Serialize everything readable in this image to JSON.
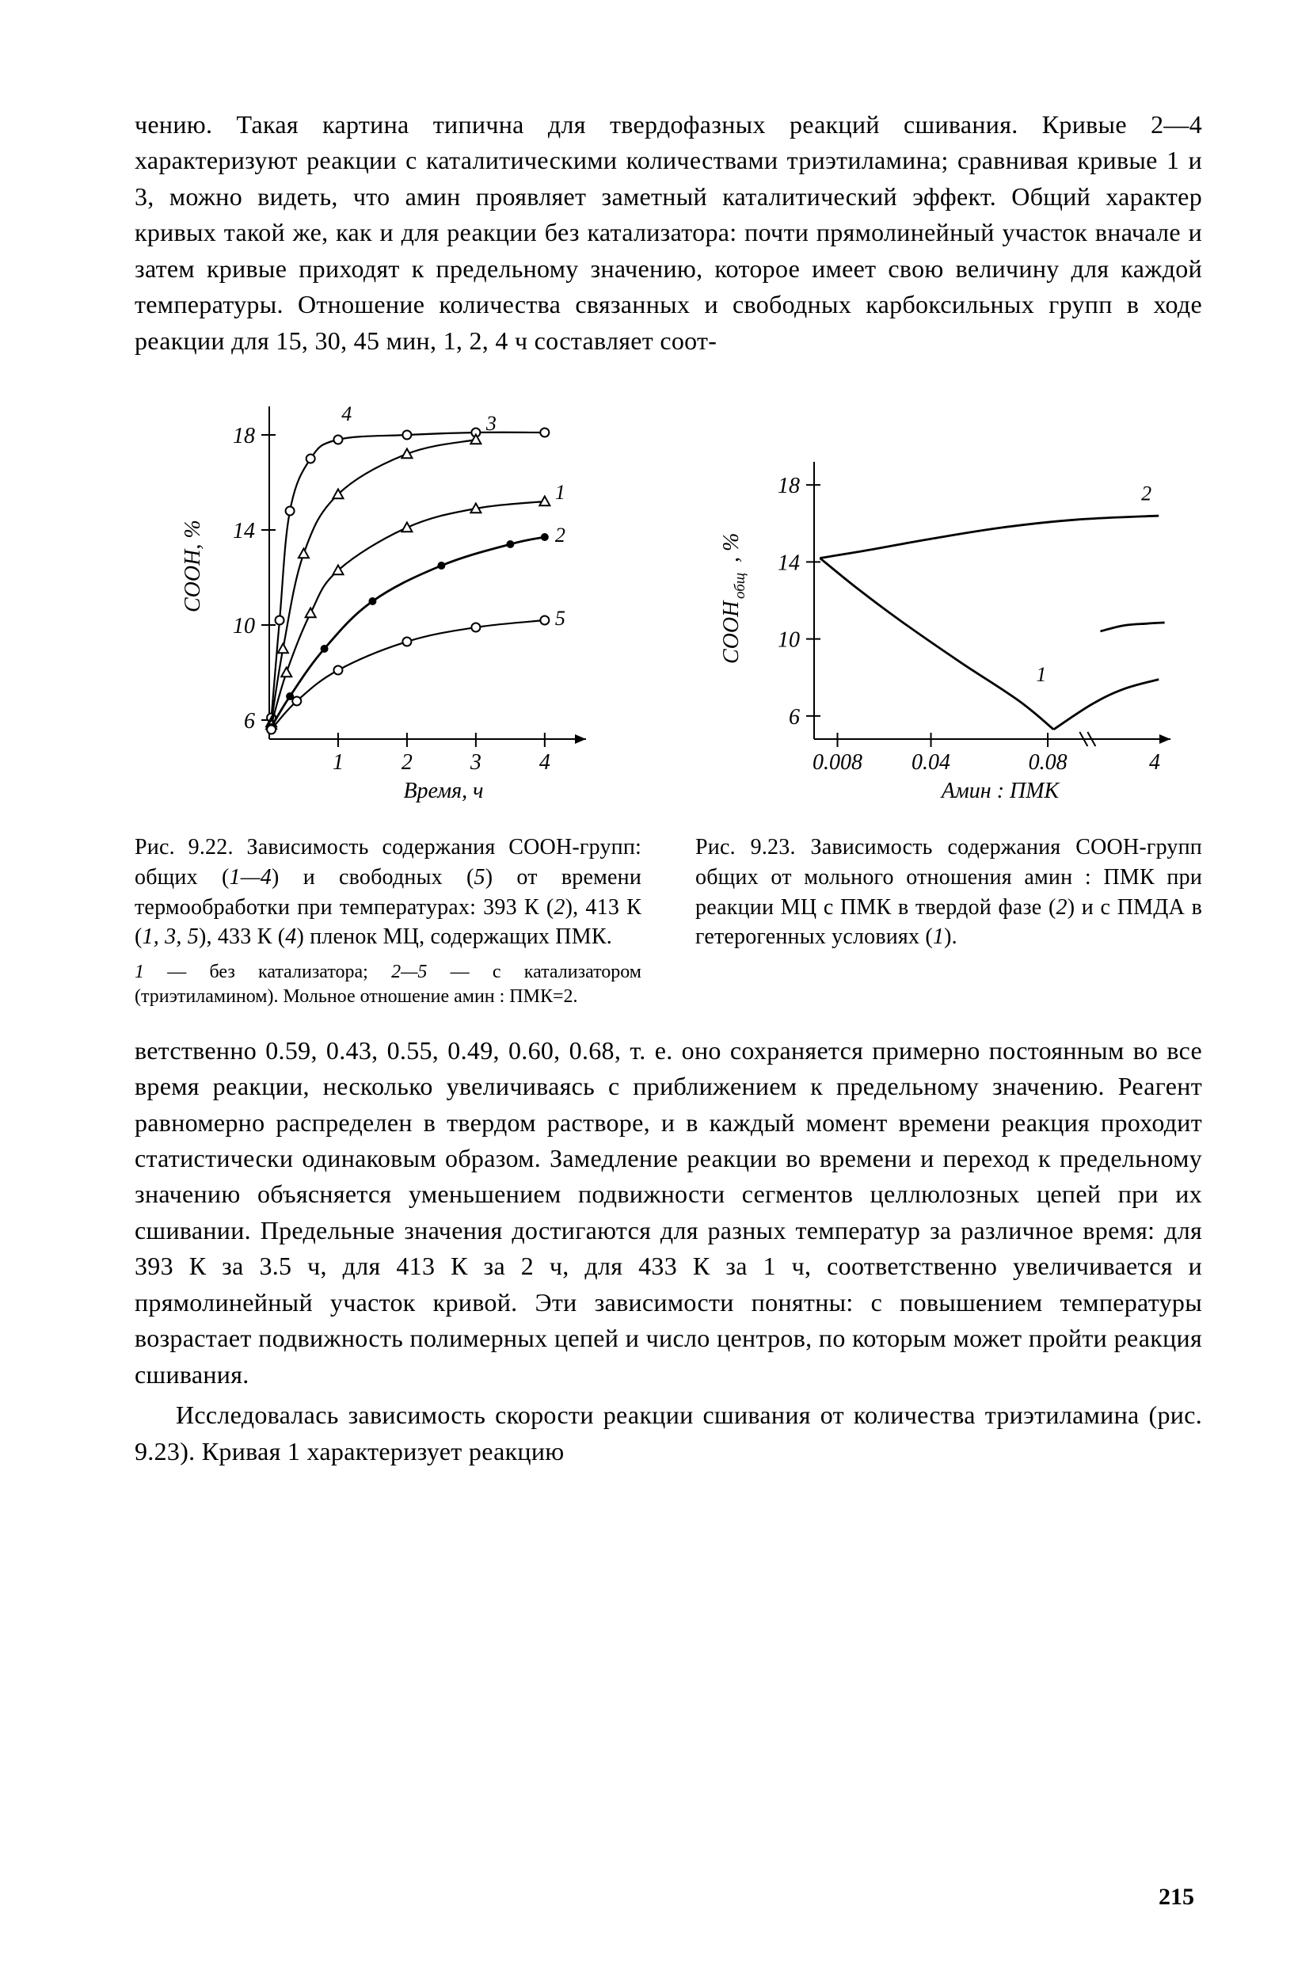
{
  "page_number": "215",
  "para_top": "чению. Такая картина типична для твердофазных реакций сшивания. Кривые 2—4 характеризуют реакции с каталитическими количествами триэтиламина; сравнивая кривые 1 и 3, можно видеть, что амин проявляет заметный каталитический эффект. Общий характер кривых такой же, как и для реакции без катализатора: почти прямолинейный участок вначале и затем кривые приходят к предельному значению, которое имеет свою величину для каждой температуры. Отношение количества связанных и свободных карбоксильных групп в ходе реакции для 15, 30, 45 мин, 1, 2, 4 ч составляет соот-",
  "para_mid": "ветственно 0.59, 0.43, 0.55, 0.49, 0.60, 0.68, т. е. оно сохраняется примерно постоянным во все время реакции, несколько увеличиваясь с приближением к предельному значению. Реагент равномерно распределен в твердом растворе, и в каждый момент времени реакция проходит статистически одинаковым образом. Замедление реакции во времени и переход к предельному значению объясняется уменьшением подвижности сегментов целлюлозных цепей при их сшивании. Предельные значения достигаются для разных температур за различное время: для 393 К за 3.5 ч, для 413 К за 2 ч, для 433 К за 1 ч, соответственно увеличивается и прямолинейный участок кривой. Эти зависимости понятны: с повышением температуры возрастает подвижность полимерных цепей и число центров, по которым может пройти реакция сшивания.",
  "para_end": "Исследовалась зависимость скорости реакции сшивания от количества триэтиламина (рис. 9.23). Кривая 1 характеризует реакцию",
  "fig922": {
    "caption_a": "Рис. 9.22. Зависимость содержания СООН-групп: общих (",
    "caption_b": "1—4",
    "caption_c": ") и свободных (",
    "caption_d": "5",
    "caption_e": ") от времени термообработки при температурах: 393 К (",
    "caption_f": "2",
    "caption_g": "), 413 К (",
    "caption_h": "1, 3, 5",
    "caption_i": "), 433 К (",
    "caption_j": "4",
    "caption_k": ") пленок МЦ, содержащих ПМК.",
    "subcap_a": "1",
    "subcap_b": " — без катализатора; ",
    "subcap_c": "2—5",
    "subcap_d": " — с катализатором (триэтиламином). Мольное отношение амин : ПМК=2.",
    "ylabel": "СООН, %",
    "xlabel": "Время, ч",
    "y_ticks": [
      6,
      10,
      14,
      18
    ],
    "x_ticks": [
      1,
      2,
      3,
      4
    ],
    "curve_labels": {
      "c1": "1",
      "c2": "2",
      "c3": "3",
      "c4": "4",
      "c5": "5"
    },
    "series": {
      "c4": {
        "pts": [
          [
            0.03,
            6.1
          ],
          [
            0.15,
            10.2
          ],
          [
            0.3,
            14.8
          ],
          [
            0.6,
            17.0
          ],
          [
            1.0,
            17.8
          ],
          [
            2.0,
            18.0
          ],
          [
            3.0,
            18.1
          ],
          [
            4.0,
            18.1
          ]
        ],
        "marker": "circle-open",
        "weight": "open"
      },
      "c3": {
        "pts": [
          [
            0.03,
            5.9
          ],
          [
            0.2,
            9.0
          ],
          [
            0.5,
            13.0
          ],
          [
            1.0,
            15.5
          ],
          [
            2.0,
            17.2
          ],
          [
            3.0,
            17.8
          ]
        ],
        "marker": "triangle-open",
        "weight": "open"
      },
      "c1": {
        "pts": [
          [
            0.03,
            5.8
          ],
          [
            0.25,
            8.0
          ],
          [
            0.6,
            10.5
          ],
          [
            1.0,
            12.3
          ],
          [
            2.0,
            14.1
          ],
          [
            3.0,
            14.9
          ],
          [
            4.0,
            15.2
          ]
        ],
        "marker": "triangle-open",
        "weight": "open"
      },
      "c2": {
        "pts": [
          [
            0.03,
            5.7
          ],
          [
            0.3,
            7.0
          ],
          [
            0.8,
            9.0
          ],
          [
            1.5,
            11.0
          ],
          [
            2.5,
            12.5
          ],
          [
            3.5,
            13.4
          ],
          [
            4.0,
            13.7
          ]
        ],
        "marker": "circle-fill",
        "weight": "fill"
      },
      "c5": {
        "pts": [
          [
            0.03,
            5.6
          ],
          [
            0.4,
            6.8
          ],
          [
            1.0,
            8.1
          ],
          [
            2.0,
            9.3
          ],
          [
            3.0,
            9.9
          ],
          [
            4.0,
            10.2
          ]
        ],
        "marker": "circle-open",
        "weight": "open"
      }
    },
    "ylim": [
      5.2,
      19.2
    ],
    "xlim": [
      0,
      4.6
    ]
  },
  "fig923": {
    "caption_a": "Рис. 9.23. Зависимость содержания СООН-групп общих от мольного отношения амин : ПМК при реакции МЦ с ПМК в твердой фазе (",
    "caption_b": "2",
    "caption_c": ") и с ПМДА в гетерогенных условиях (",
    "caption_d": "1",
    "caption_e": ").",
    "ylabel_main": "СООН",
    "ylabel_sub": "общ",
    "ylabel_tail": ", %",
    "xlabel": "Амин : ПМК",
    "y_ticks": [
      6,
      10,
      14,
      18
    ],
    "x_ticks": [
      "0.008",
      "0.04",
      "0.08"
    ],
    "x_tick_vals": [
      0.008,
      0.04,
      0.08
    ],
    "x_tail_label": "4",
    "curve_labels": {
      "c1": "1",
      "c2": "2"
    },
    "series": {
      "c1": {
        "pts": [
          [
            0.002,
            14.2
          ],
          [
            0.015,
            12.6
          ],
          [
            0.03,
            10.9
          ],
          [
            0.05,
            8.8
          ],
          [
            0.07,
            6.8
          ],
          [
            0.082,
            5.3
          ]
        ],
        "weight": "fill"
      },
      "c1_tail": {
        "pts": [
          [
            0.082,
            5.3
          ],
          [
            0.095,
            6.6
          ],
          [
            0.106,
            7.4
          ],
          [
            0.118,
            7.9
          ]
        ],
        "weight": "fill"
      },
      "c2": {
        "pts": [
          [
            0.002,
            14.2
          ],
          [
            0.018,
            14.6
          ],
          [
            0.04,
            15.2
          ],
          [
            0.065,
            15.8
          ],
          [
            0.09,
            16.2
          ],
          [
            0.118,
            16.4
          ]
        ],
        "weight": "fill"
      },
      "c2b": {
        "pts": [
          [
            0.098,
            10.4
          ],
          [
            0.106,
            10.7
          ],
          [
            0.114,
            10.8
          ],
          [
            0.12,
            10.85
          ]
        ],
        "weight": "fill"
      }
    },
    "ylim": [
      4.8,
      19.2
    ],
    "xlim": [
      0,
      0.122
    ]
  },
  "colors": {
    "ink": "#000000",
    "bg": "#ffffff"
  }
}
